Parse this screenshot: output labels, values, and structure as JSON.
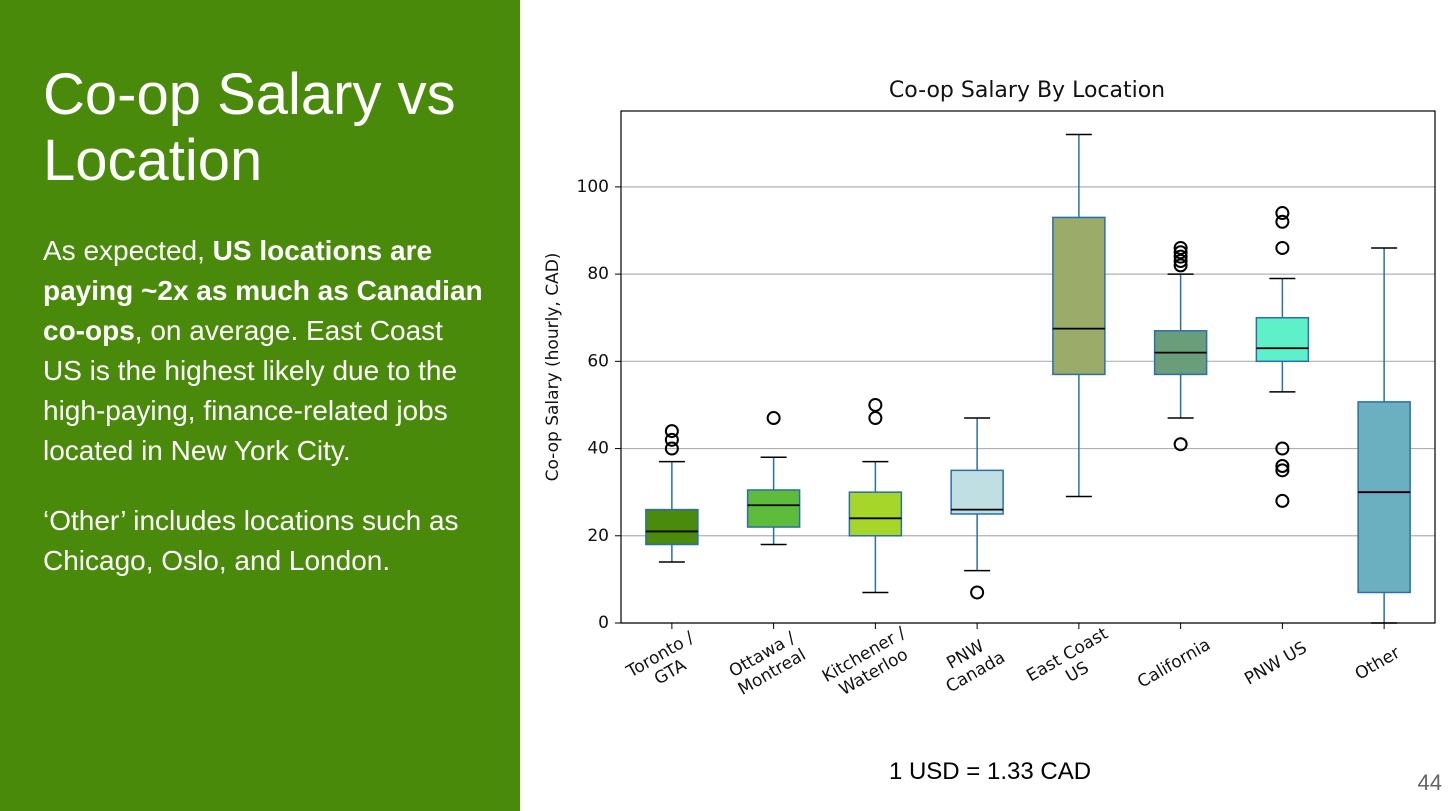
{
  "slide": {
    "title": "Co-op Salary vs Location",
    "paragraphs": [
      [
        {
          "text": "As expected, "
        },
        {
          "text": "US locations are paying ~2x as much as Canadian co-ops",
          "bold": true
        },
        {
          "text": ", on average. East Coast US is the highest likely due to the high-paying, finance-related jobs located in New York City."
        }
      ],
      [
        {
          "text": "‘Other’ includes locations such as Chicago, Oslo, and London."
        }
      ]
    ],
    "footnote": "1 USD = 1.33 CAD",
    "page_number": "44"
  },
  "chart_data": {
    "type": "box",
    "title": "Co-op Salary By Location",
    "y_label": "Co-op Salary (hourly, CAD)",
    "categories": [
      [
        "Toronto /",
        "GTA"
      ],
      [
        "Ottawa /",
        "Montreal"
      ],
      [
        "Kitchener /",
        "Waterloo"
      ],
      [
        "PNW",
        "Canada"
      ],
      [
        "East Coast",
        "US"
      ],
      [
        "California"
      ],
      [
        "PNW US"
      ],
      [
        "Other"
      ]
    ],
    "boxes": [
      {
        "low": 14,
        "q1": 18,
        "median": 21,
        "q3": 26,
        "high": 37,
        "outliers": [
          40,
          42,
          44
        ],
        "color": "#4a8a0c"
      },
      {
        "low": 18,
        "q1": 22,
        "median": 27,
        "q3": 30.5,
        "high": 38,
        "outliers": [
          47
        ],
        "color": "#5dbd3a"
      },
      {
        "low": 7,
        "q1": 20,
        "median": 24,
        "q3": 30,
        "high": 37,
        "outliers": [
          47,
          50
        ],
        "color": "#a6d62a"
      },
      {
        "low": 12,
        "q1": 25,
        "median": 26,
        "q3": 35,
        "high": 47,
        "outliers": [
          7
        ],
        "color": "#c0dfe3"
      },
      {
        "low": 29,
        "q1": 57,
        "median": 67.5,
        "q3": 93,
        "high": 112,
        "outliers": [],
        "color": "#9aab6a"
      },
      {
        "low": 47,
        "q1": 57,
        "median": 62,
        "q3": 67,
        "high": 80,
        "outliers": [
          41,
          82,
          83,
          84,
          85,
          86
        ],
        "color": "#6a9e7a"
      },
      {
        "low": 53,
        "q1": 60,
        "median": 63,
        "q3": 70,
        "high": 79,
        "outliers": [
          28,
          35,
          36,
          40,
          86,
          92,
          94
        ],
        "color": "#5ef0c8"
      },
      {
        "low": 0,
        "q1": 7,
        "median": 30,
        "q3": 50.7,
        "high": 86,
        "outliers": [],
        "color": "#6ab0c0"
      }
    ],
    "edge_color": "#2a6fa8",
    "median_color": "#000000",
    "ylim": [
      0,
      117.4
    ],
    "yticks": [
      0,
      20,
      40,
      60,
      80,
      100
    ],
    "grid": true
  }
}
